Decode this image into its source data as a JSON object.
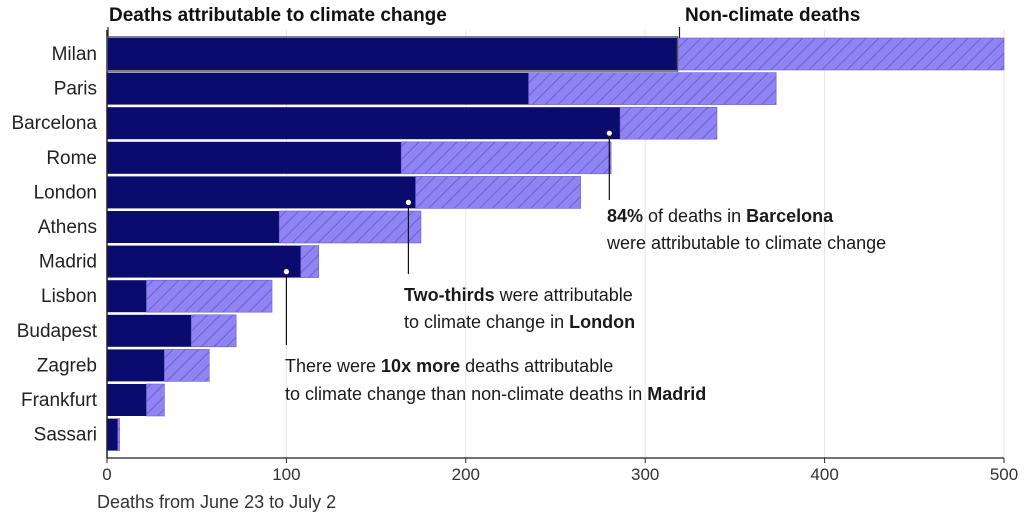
{
  "chart_data": {
    "type": "bar",
    "orientation": "horizontal",
    "stacked": true,
    "categories": [
      "Milan",
      "Paris",
      "Barcelona",
      "Rome",
      "London",
      "Athens",
      "Madrid",
      "Lisbon",
      "Budapest",
      "Zagreb",
      "Frankfurt",
      "Sassari"
    ],
    "series": [
      {
        "name": "Deaths attributable to climate change",
        "color": "#0b0b6e",
        "values": [
          318,
          235,
          286,
          164,
          172,
          96,
          108,
          22,
          47,
          32,
          22,
          6
        ]
      },
      {
        "name": "Non-climate deaths",
        "color": "#8f84f2",
        "pattern": "hatched",
        "values": [
          182,
          138,
          54,
          117,
          92,
          79,
          10,
          70,
          25,
          25,
          10,
          1
        ]
      }
    ],
    "xlabel": "Deaths from June 23 to July 2",
    "xlim": [
      0,
      500
    ],
    "xticks": [
      0,
      100,
      200,
      300,
      400,
      500
    ],
    "grid": true,
    "legend_placement": "top",
    "annotations": [
      {
        "target": "Barcelona",
        "value": 280,
        "lines": [
          [
            {
              "text": "84%",
              "bold": true
            },
            {
              "text": " of deaths in "
            },
            {
              "text": "Barcelona",
              "bold": true
            }
          ],
          [
            {
              "text": "were attributable to climate change"
            }
          ]
        ]
      },
      {
        "target": "London",
        "value": 168,
        "lines": [
          [
            {
              "text": "Two-thirds",
              "bold": true
            },
            {
              "text": " were attributable"
            }
          ],
          [
            {
              "text": "to climate change in "
            },
            {
              "text": "London",
              "bold": true
            }
          ]
        ]
      },
      {
        "target": "Madrid",
        "value": 100,
        "lines": [
          [
            {
              "text": "There were "
            },
            {
              "text": "10x more",
              "bold": true
            },
            {
              "text": " deaths attributable"
            }
          ],
          [
            {
              "text": "to climate change than non-climate deaths in "
            },
            {
              "text": "Madrid",
              "bold": true
            }
          ]
        ]
      }
    ]
  }
}
